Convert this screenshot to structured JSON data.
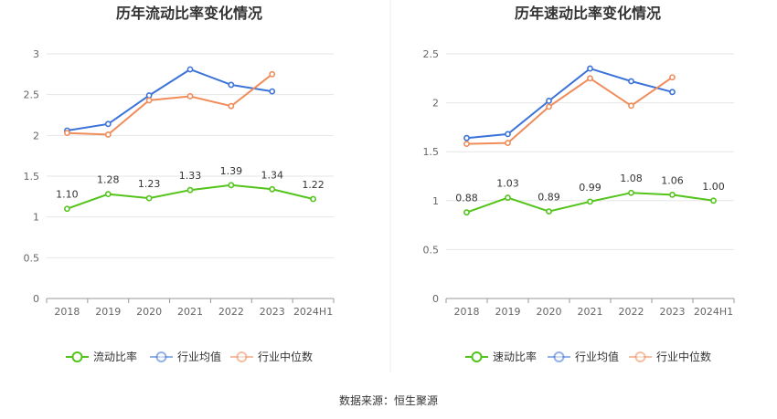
{
  "source_label": "数据来源：恒生聚源",
  "colors": {
    "series_main": "#52c41a",
    "industry_avg": "#3b73d8",
    "industry_median": "#f08c5a"
  },
  "chart_data": [
    {
      "type": "line",
      "title": "历年流动比率变化情况",
      "categories": [
        "2018",
        "2019",
        "2020",
        "2021",
        "2022",
        "2023",
        "2024H1"
      ],
      "ylim": [
        0,
        3
      ],
      "yticks": [
        "0",
        "0.5",
        "1",
        "1.5",
        "2",
        "2.5",
        "3"
      ],
      "ytick_values": [
        0,
        0.5,
        1,
        1.5,
        2,
        2.5,
        3
      ],
      "grid": true,
      "legend_position": "bottom",
      "series": [
        {
          "name": "流动比率",
          "values": [
            1.1,
            1.28,
            1.23,
            1.33,
            1.39,
            1.34,
            1.22
          ],
          "labels": [
            "1.10",
            "1.28",
            "1.23",
            "1.33",
            "1.39",
            "1.34",
            "1.22"
          ]
        },
        {
          "name": "行业均值",
          "values": [
            2.06,
            2.14,
            2.49,
            2.81,
            2.62,
            2.54,
            null
          ]
        },
        {
          "name": "行业中位数",
          "values": [
            2.03,
            2.01,
            2.43,
            2.48,
            2.36,
            2.75,
            null
          ]
        }
      ]
    },
    {
      "type": "line",
      "title": "历年速动比率变化情况",
      "categories": [
        "2018",
        "2019",
        "2020",
        "2021",
        "2022",
        "2023",
        "2024H1"
      ],
      "ylim": [
        0,
        2.5
      ],
      "yticks": [
        "0",
        "0.5",
        "1",
        "1.5",
        "2",
        "2.5"
      ],
      "ytick_values": [
        0,
        0.5,
        1,
        1.5,
        2,
        2.5
      ],
      "grid": true,
      "legend_position": "bottom",
      "series": [
        {
          "name": "速动比率",
          "values": [
            0.88,
            1.03,
            0.89,
            0.99,
            1.08,
            1.06,
            1.0
          ],
          "labels": [
            "0.88",
            "1.03",
            "0.89",
            "0.99",
            "1.08",
            "1.06",
            "1.00"
          ]
        },
        {
          "name": "行业均值",
          "values": [
            1.64,
            1.68,
            2.02,
            2.35,
            2.22,
            2.11,
            null
          ]
        },
        {
          "name": "行业中位数",
          "values": [
            1.58,
            1.59,
            1.96,
            2.25,
            1.97,
            2.26,
            null
          ]
        }
      ]
    }
  ]
}
